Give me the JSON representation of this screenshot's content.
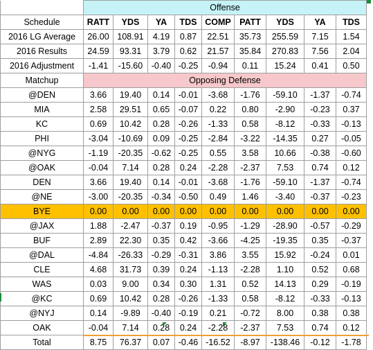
{
  "header": {
    "offense_label": "Offense",
    "opposing_defense_label": "Opposing Defense",
    "columns": [
      "Schedule",
      "RATT",
      "YDS",
      "YA",
      "TDS",
      "COMP",
      "PATT",
      "YDS",
      "YA",
      "TDS"
    ]
  },
  "summary_rows": [
    {
      "label": "2016 LG Average",
      "values": [
        "26.00",
        "108.91",
        "4.19",
        "0.87",
        "22.51",
        "35.73",
        "255.59",
        "7.15",
        "1.54"
      ]
    },
    {
      "label": "2016 Results",
      "values": [
        "24.59",
        "93.31",
        "3.79",
        "0.62",
        "21.57",
        "35.84",
        "270.83",
        "7.56",
        "2.04"
      ]
    },
    {
      "label": "2016 Adjustment",
      "values": [
        "-1.41",
        "-15.60",
        "-0.40",
        "-0.25",
        "-0.94",
        "0.11",
        "15.24",
        "0.41",
        "0.50"
      ]
    }
  ],
  "matchup_label": "Matchup",
  "matchups": [
    {
      "label": "@DEN",
      "values": [
        "3.66",
        "19.40",
        "0.14",
        "-0.01",
        "-3.68",
        "-1.76",
        "-59.10",
        "-1.37",
        "-0.74"
      ]
    },
    {
      "label": "MIA",
      "values": [
        "2.58",
        "29.51",
        "0.65",
        "-0.07",
        "0.22",
        "0.80",
        "-2.90",
        "-0.23",
        "0.37"
      ]
    },
    {
      "label": "KC",
      "values": [
        "0.69",
        "10.42",
        "0.28",
        "-0.26",
        "-1.33",
        "0.58",
        "-8.12",
        "-0.33",
        "-0.13"
      ]
    },
    {
      "label": "PHI",
      "values": [
        "-3.04",
        "-10.69",
        "0.09",
        "-0.25",
        "-2.84",
        "-3.22",
        "-14.35",
        "0.27",
        "-0.05"
      ]
    },
    {
      "label": "@NYG",
      "values": [
        "-1.19",
        "-20.35",
        "-0.62",
        "-0.25",
        "0.55",
        "3.58",
        "10.66",
        "-0.38",
        "-0.60"
      ]
    },
    {
      "label": "@OAK",
      "values": [
        "-0.04",
        "7.14",
        "0.28",
        "0.24",
        "-2.28",
        "-2.37",
        "7.53",
        "0.74",
        "0.12"
      ]
    },
    {
      "label": "DEN",
      "values": [
        "3.66",
        "19.40",
        "0.14",
        "-0.01",
        "-3.68",
        "-1.76",
        "-59.10",
        "-1.37",
        "-0.74"
      ]
    },
    {
      "label": "@NE",
      "values": [
        "-3.00",
        "-20.35",
        "-0.34",
        "-0.50",
        "0.49",
        "1.46",
        "-3.40",
        "-0.37",
        "-0.23"
      ]
    },
    {
      "label": "BYE",
      "values": [
        "0.00",
        "0.00",
        "0.00",
        "0.00",
        "0.00",
        "0.00",
        "0.00",
        "0.00",
        "0.00"
      ]
    },
    {
      "label": "@JAX",
      "values": [
        "1.88",
        "-2.47",
        "-0.37",
        "0.19",
        "-0.95",
        "-1.29",
        "-28.90",
        "-0.57",
        "-0.29"
      ]
    },
    {
      "label": "BUF",
      "values": [
        "2.89",
        "22.30",
        "0.35",
        "0.42",
        "-3.66",
        "-4.25",
        "-19.35",
        "0.35",
        "-0.37"
      ]
    },
    {
      "label": "@DAL",
      "values": [
        "-4.84",
        "-26.33",
        "-0.29",
        "-0.31",
        "3.86",
        "3.55",
        "15.92",
        "-0.24",
        "0.01"
      ]
    },
    {
      "label": "CLE",
      "values": [
        "4.68",
        "31.73",
        "0.39",
        "0.24",
        "-1.13",
        "-2.28",
        "1.10",
        "0.52",
        "0.68"
      ]
    },
    {
      "label": "WAS",
      "values": [
        "0.03",
        "9.00",
        "0.34",
        "0.30",
        "1.31",
        "0.52",
        "14.13",
        "0.29",
        "-0.19"
      ]
    },
    {
      "label": "@KC",
      "values": [
        "0.69",
        "10.42",
        "0.28",
        "-0.26",
        "-1.33",
        "0.58",
        "-8.12",
        "-0.33",
        "-0.13"
      ]
    },
    {
      "label": "@NYJ",
      "values": [
        "0.14",
        "-9.89",
        "-0.40",
        "-0.19",
        "0.21",
        "-0.72",
        "8.00",
        "0.38",
        "0.38"
      ]
    },
    {
      "label": "OAK",
      "values": [
        "-0.04",
        "7.14",
        "0.28",
        "0.24",
        "-2.28",
        "-2.37",
        "7.53",
        "0.74",
        "0.12"
      ]
    }
  ],
  "total_row": {
    "label": "Total",
    "values": [
      "8.75",
      "76.37",
      "0.07",
      "-0.46",
      "-16.52",
      "-8.97",
      "-138.46",
      "-0.12",
      "-1.78"
    ]
  },
  "colors": {
    "offense_band": "#c5f3f7",
    "defense_band": "#f6c8cb",
    "bye_highlight": "#ffc000",
    "error_marker": "#1e8b3a"
  }
}
